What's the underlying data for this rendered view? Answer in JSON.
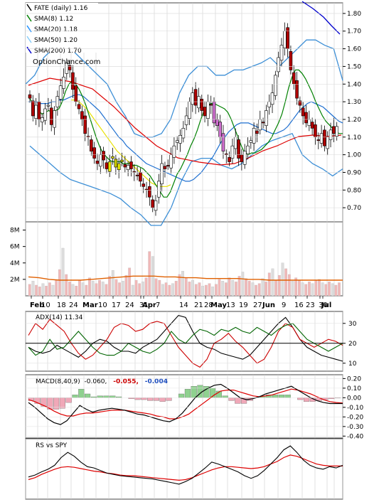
{
  "chart_data": [
    {
      "type": "candlestick",
      "panel": "price",
      "legend": [
        {
          "label": "FATE (daily) 1.16",
          "color": "#000000"
        },
        {
          "label": "SMA(8) 1.12",
          "color": "#008000"
        },
        {
          "label": "SMA(20) 1.18",
          "color": "#1e90ff"
        },
        {
          "label": "SMA(50) 1.20",
          "color": "#87cefa"
        },
        {
          "label": "SMA(200) 1.70",
          "color": "#0000cd"
        }
      ],
      "watermark": "OptionChance.com",
      "ylim": [
        0.62,
        1.86
      ],
      "yticks": [
        "1.80",
        "1.70",
        "1.60",
        "1.50",
        "1.40",
        "1.30",
        "1.20",
        "1.10",
        "1.00",
        "0.90",
        "0.80",
        "0.70"
      ],
      "close": [
        1.32,
        1.22,
        1.28,
        1.2,
        1.21,
        1.26,
        1.28,
        1.17,
        1.25,
        1.33,
        1.39,
        1.44,
        1.52,
        1.48,
        1.37,
        1.3,
        1.26,
        1.2,
        1.12,
        1.1,
        1.02,
        0.98,
        0.95,
        1.0,
        0.97,
        0.92,
        0.96,
        0.99,
        0.93,
        0.95,
        0.96,
        0.93,
        0.94,
        0.92,
        0.9,
        0.88,
        0.85,
        0.82,
        0.8,
        0.76,
        0.7,
        0.74,
        0.85,
        0.95,
        0.92,
        0.94,
        1.0,
        1.05,
        1.08,
        1.11,
        1.15,
        1.22,
        1.3,
        1.35,
        1.28,
        1.33,
        1.25,
        1.22,
        1.3,
        1.28,
        1.18,
        1.2,
        1.1,
        1.02,
        1.0,
        0.96,
        1.05,
        1.1,
        0.98,
        0.96,
        1.02,
        1.05,
        1.08,
        1.15,
        1.12,
        1.2,
        1.18,
        1.25,
        1.3,
        1.35,
        1.45,
        1.55,
        1.62,
        1.7,
        1.6,
        1.48,
        1.4,
        1.32,
        1.28,
        1.22,
        1.18,
        1.2,
        1.15,
        1.1,
        1.08,
        1.12,
        1.05,
        1.1,
        1.14,
        1.12,
        1.16
      ],
      "sma8": [
        1.33,
        1.3,
        1.27,
        1.25,
        1.23,
        1.24,
        1.25,
        1.24,
        1.25,
        1.26,
        1.3,
        1.36,
        1.4,
        1.42,
        1.4,
        1.37,
        1.33,
        1.28,
        1.22,
        1.16,
        1.1,
        1.05,
        1.01,
        0.99,
        0.97,
        0.96,
        0.96,
        0.96,
        0.95,
        0.95,
        0.95,
        0.94,
        0.94,
        0.93,
        0.92,
        0.9,
        0.88,
        0.85,
        0.82,
        0.79,
        0.76,
        0.76,
        0.79,
        0.84,
        0.89,
        0.92,
        0.96,
        1.0,
        1.05,
        1.09,
        1.14,
        1.2,
        1.25,
        1.28,
        1.29,
        1.29,
        1.28,
        1.27,
        1.26,
        1.24,
        1.2,
        1.15,
        1.1,
        1.05,
        1.01,
        1.0,
        1.01,
        1.01,
        1.02,
        1.03,
        1.05,
        1.07,
        1.1,
        1.14,
        1.18,
        1.23,
        1.3,
        1.38,
        1.44,
        1.48,
        1.48,
        1.46,
        1.43,
        1.39,
        1.35,
        1.3,
        1.26,
        1.22,
        1.19,
        1.17,
        1.15,
        1.13,
        1.12,
        1.12
      ],
      "sma20": [
        1.3,
        1.3,
        1.3,
        1.29,
        1.29,
        1.29,
        1.3,
        1.3,
        1.31,
        1.31,
        1.32,
        1.33,
        1.34,
        1.34,
        1.33,
        1.31,
        1.29,
        1.27,
        1.25,
        1.22,
        1.19,
        1.16,
        1.13,
        1.1,
        1.08,
        1.05,
        1.03,
        1.01,
        0.99,
        0.97,
        0.95,
        0.94,
        0.93,
        0.92,
        0.91,
        0.9,
        0.89,
        0.88,
        0.87,
        0.86,
        0.85,
        0.85,
        0.86,
        0.88,
        0.9,
        0.93,
        0.96,
        0.99,
        1.03,
        1.07,
        1.1,
        1.13,
        1.15,
        1.17,
        1.18,
        1.18,
        1.18,
        1.17,
        1.16,
        1.15,
        1.14,
        1.13,
        1.12,
        1.12,
        1.13,
        1.14,
        1.16,
        1.19,
        1.22,
        1.25,
        1.27,
        1.29,
        1.3,
        1.29,
        1.28,
        1.27,
        1.25,
        1.23,
        1.21,
        1.19,
        1.18
      ],
      "sma50": [
        null,
        null,
        null,
        null,
        null,
        null,
        null,
        null,
        null,
        null,
        null,
        null,
        1.31,
        1.31,
        1.3,
        1.28,
        1.26,
        1.23,
        1.2,
        1.17,
        1.14,
        1.11,
        1.08,
        1.05,
        1.02,
        1.0,
        0.98,
        0.96,
        0.94,
        0.92,
        0.9,
        0.88,
        0.86,
        0.84,
        0.83,
        0.82,
        0.82,
        0.82,
        0.83
      ],
      "bollinger_upper": [
        1.4,
        1.45,
        1.55,
        1.6,
        1.62,
        1.6,
        1.55,
        1.5,
        1.45,
        1.4,
        1.3,
        1.22,
        1.12,
        1.1,
        1.1,
        1.12,
        1.2,
        1.35,
        1.45,
        1.5,
        1.5,
        1.45,
        1.45,
        1.48,
        1.48,
        1.5,
        1.52,
        1.55,
        1.5,
        1.55,
        1.6,
        1.65,
        1.65,
        1.62,
        1.6,
        1.42
      ],
      "bollinger_lower": [
        1.05,
        1.0,
        0.95,
        0.9,
        0.86,
        0.84,
        0.82,
        0.8,
        0.78,
        0.75,
        0.7,
        0.66,
        0.6,
        0.6,
        0.7,
        0.85,
        0.96,
        0.98,
        0.98,
        0.94,
        0.92,
        0.95,
        1.0,
        1.05,
        1.08,
        1.1,
        1.12,
        1.0,
        0.95,
        0.92,
        0.88,
        0.92
      ]
    },
    {
      "type": "bar",
      "panel": "volume",
      "ylim": [
        0,
        9000000
      ],
      "yticks": [
        "8M",
        "6M",
        "4M",
        "2M"
      ],
      "volumes_millions": [
        1.4,
        1.8,
        1.3,
        1.1,
        1.5,
        1.2,
        1.6,
        1.3,
        1.9,
        3.2,
        5.8,
        2.6,
        1.7,
        1.4,
        1.2,
        1.9,
        1.6,
        1.3,
        2.2,
        1.8,
        1.5,
        1.9,
        1.7,
        1.4,
        2.4,
        3.1,
        2.0,
        1.6,
        1.8,
        2.5,
        3.4,
        1.3,
        1.9,
        1.5,
        1.7,
        2.2,
        5.4,
        4.8,
        2.1,
        1.9,
        1.4,
        1.6,
        1.3,
        1.5,
        1.8,
        2.6,
        3.0,
        2.2,
        1.7,
        1.9,
        1.4,
        1.6,
        1.2,
        1.3,
        1.5,
        1.1,
        1.4,
        2.0,
        1.8,
        1.6,
        2.2,
        1.9,
        1.7,
        2.4,
        2.9,
        2.1,
        1.8,
        1.6,
        1.3,
        1.5,
        2.1,
        1.7,
        2.8,
        3.3,
        1.9,
        2.5,
        4.0,
        3.3,
        2.6,
        1.8,
        2.2,
        1.9,
        1.6,
        1.4,
        1.7,
        1.5,
        1.9,
        2.0,
        1.6,
        1.4,
        1.7,
        1.5,
        1.3,
        1.6
      ],
      "avg_volume_millions": [
        2.3,
        2.2,
        2.0,
        1.9,
        1.9,
        1.9,
        2.0,
        2.1,
        2.2,
        2.3,
        2.4,
        2.4,
        2.4,
        2.3,
        2.3,
        2.2,
        2.2,
        2.1,
        2.1,
        2.1,
        2.1,
        2.0,
        2.0,
        1.9,
        1.9,
        1.9,
        1.9,
        1.9,
        1.9,
        1.9,
        1.9
      ]
    },
    {
      "type": "line",
      "panel": "x-axis",
      "tick_labels": [
        "Feb",
        "10",
        "18",
        "24",
        "Mar",
        "10",
        "17",
        "24",
        "31",
        "Apr",
        "7",
        "14",
        "21",
        "28",
        "May",
        "13",
        "19",
        "27",
        "Jun",
        "9",
        "16",
        "23",
        "30",
        "Jul"
      ]
    },
    {
      "type": "line",
      "panel": "adx",
      "label": "ADX(14) 11.34",
      "ylim": [
        6,
        36
      ],
      "yticks": [
        "30",
        "20",
        "10"
      ],
      "series": [
        {
          "color": "#000000",
          "values": [
            18,
            16,
            15,
            16,
            19,
            17,
            15,
            13,
            16,
            20,
            22,
            21,
            18,
            16,
            16,
            15,
            18,
            20,
            22,
            26,
            30,
            34,
            33,
            26,
            20,
            18,
            17,
            15,
            14,
            13,
            12,
            14,
            18,
            22,
            26,
            30,
            33,
            28,
            22,
            18,
            16,
            14,
            13,
            12,
            11
          ]
        },
        {
          "color": "#cc0000",
          "values": [
            24,
            30,
            27,
            32,
            29,
            26,
            20,
            15,
            12,
            14,
            18,
            22,
            28,
            30,
            29,
            26,
            27,
            30,
            31,
            30,
            24,
            18,
            14,
            10,
            8,
            12,
            20,
            22,
            25,
            21,
            18,
            14,
            10,
            12,
            18,
            26,
            30,
            28,
            22,
            20,
            18,
            20,
            22,
            21,
            19
          ]
        },
        {
          "color": "#006400",
          "values": [
            18,
            14,
            16,
            22,
            17,
            18,
            22,
            26,
            22,
            18,
            15,
            14,
            14,
            16,
            20,
            18,
            16,
            15,
            17,
            20,
            26,
            22,
            20,
            24,
            27,
            26,
            24,
            27,
            26,
            28,
            26,
            25,
            28,
            26,
            24,
            27,
            29,
            30,
            26,
            22,
            20,
            18,
            16,
            18,
            20
          ]
        }
      ]
    },
    {
      "type": "line",
      "panel": "macd",
      "labels": {
        "prefix": "MACD(8,40,9)",
        "macd": "-0.060,",
        "signal": "-0.055,",
        "hist": "-0.004"
      },
      "ylim": [
        -0.42,
        0.24
      ],
      "yticks": [
        "0.20",
        "0.10",
        "0.00",
        "-0.10",
        "-0.20",
        "-0.30",
        "-0.40"
      ],
      "macd": [
        -0.05,
        -0.1,
        -0.16,
        -0.22,
        -0.26,
        -0.28,
        -0.24,
        -0.16,
        -0.08,
        -0.12,
        -0.15,
        -0.13,
        -0.12,
        -0.11,
        -0.12,
        -0.13,
        -0.15,
        -0.17,
        -0.18,
        -0.2,
        -0.22,
        -0.24,
        -0.25,
        -0.22,
        -0.16,
        -0.08,
        0.0,
        0.06,
        0.1,
        0.13,
        0.14,
        0.1,
        0.05,
        0.0,
        -0.02,
        -0.01,
        0.01,
        0.04,
        0.06,
        0.08,
        0.1,
        0.12,
        0.08,
        0.04,
        0.0,
        -0.03,
        -0.05,
        -0.06,
        -0.06,
        -0.06
      ],
      "signal": [
        -0.02,
        -0.04,
        -0.07,
        -0.1,
        -0.14,
        -0.17,
        -0.19,
        -0.19,
        -0.17,
        -0.16,
        -0.16,
        -0.15,
        -0.14,
        -0.13,
        -0.13,
        -0.13,
        -0.14,
        -0.15,
        -0.16,
        -0.17,
        -0.19,
        -0.2,
        -0.22,
        -0.22,
        -0.2,
        -0.17,
        -0.12,
        -0.07,
        -0.02,
        0.03,
        0.07,
        0.08,
        0.08,
        0.06,
        0.04,
        0.02,
        0.01,
        0.02,
        0.03,
        0.05,
        0.07,
        0.09,
        0.08,
        0.06,
        0.04,
        0.01,
        -0.02,
        -0.04,
        -0.05,
        -0.055
      ],
      "histogram": [
        -0.03,
        -0.06,
        -0.09,
        -0.12,
        -0.12,
        -0.11,
        -0.05,
        0.03,
        0.09,
        0.04,
        0.01,
        0.02,
        0.02,
        0.02,
        0.01,
        0.0,
        -0.01,
        -0.02,
        -0.02,
        -0.03,
        -0.03,
        -0.04,
        -0.03,
        0.0,
        0.04,
        0.09,
        0.12,
        0.13,
        0.12,
        0.1,
        0.07,
        0.02,
        -0.03,
        -0.06,
        -0.06,
        -0.03,
        0.0,
        0.02,
        0.03,
        0.03,
        0.03,
        0.03,
        0.0,
        -0.02,
        -0.04,
        -0.04,
        -0.03,
        -0.02,
        -0.01,
        -0.004
      ]
    },
    {
      "type": "line",
      "panel": "relative-strength",
      "label": "RS vs SPY",
      "rs": [
        32,
        35,
        40,
        44,
        50,
        62,
        70,
        64,
        55,
        48,
        46,
        42,
        38,
        36,
        34,
        33,
        32,
        31,
        30,
        29,
        27,
        25,
        23,
        21,
        25,
        30,
        38,
        46,
        55,
        52,
        48,
        44,
        40,
        34,
        30,
        34,
        42,
        52,
        62,
        74,
        80,
        70,
        58,
        50,
        46,
        44,
        48,
        46,
        50
      ],
      "rs_ma": [
        28,
        31,
        36,
        40,
        44,
        47,
        48,
        47,
        45,
        43,
        41,
        40,
        38,
        37,
        35,
        34,
        34,
        33,
        32,
        31,
        30,
        29,
        28,
        27,
        28,
        31,
        35,
        39,
        43,
        46,
        48,
        48,
        47,
        46,
        45,
        46,
        48,
        52,
        56,
        62,
        66,
        64,
        60,
        56,
        52,
        50,
        49,
        49,
        49
      ]
    }
  ]
}
